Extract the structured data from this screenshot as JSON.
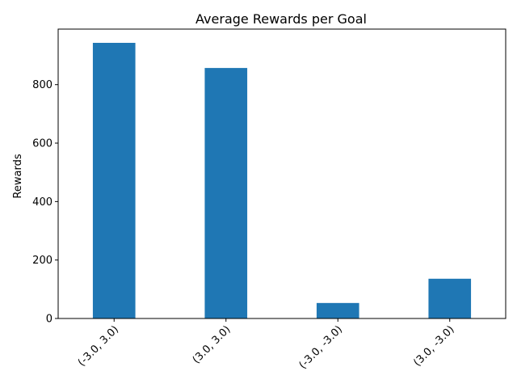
{
  "chart_data": {
    "type": "bar",
    "title": "Average Rewards per Goal",
    "xlabel": "",
    "ylabel": "Rewards",
    "categories": [
      "(-3.0, 3.0)",
      "(3.0, 3.0)",
      "(-3.0, -3.0)",
      "(3.0, -3.0)"
    ],
    "values": [
      943,
      857,
      53,
      136
    ],
    "ylim": [
      0,
      990
    ],
    "yticks": [
      0,
      200,
      400,
      600,
      800
    ],
    "bar_color": "#1f77b4",
    "grid": false,
    "legend": "none",
    "xtick_rotation": 45
  }
}
